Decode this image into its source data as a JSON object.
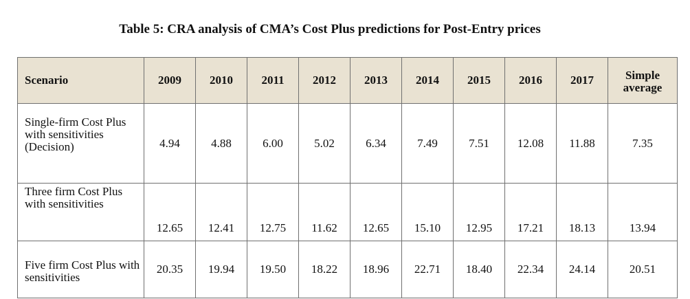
{
  "title": "Table 5: CRA analysis of CMA’s Cost Plus predictions for Post-Entry prices",
  "table": {
    "header_scenario": "Scenario",
    "years": [
      "2009",
      "2010",
      "2011",
      "2012",
      "2013",
      "2014",
      "2015",
      "2016",
      "2017"
    ],
    "header_average": "Simple average",
    "rows": [
      {
        "scenario": "Single-firm Cost Plus with sensitivities (Decision)",
        "values": [
          "4.94",
          "4.88",
          "6.00",
          "5.02",
          "6.34",
          "7.49",
          "7.51",
          "12.08",
          "11.88"
        ],
        "average": "7.35"
      },
      {
        "scenario": "Three firm Cost Plus with sensitivities",
        "values": [
          "12.65",
          "12.41",
          "12.75",
          "11.62",
          "12.65",
          "15.10",
          "12.95",
          "17.21",
          "18.13"
        ],
        "average": "13.94"
      },
      {
        "scenario": "Five firm Cost Plus with sensitivities",
        "values": [
          "20.35",
          "19.94",
          "19.50",
          "18.22",
          "18.96",
          "22.71",
          "18.40",
          "22.34",
          "24.14"
        ],
        "average": "20.51"
      }
    ]
  }
}
